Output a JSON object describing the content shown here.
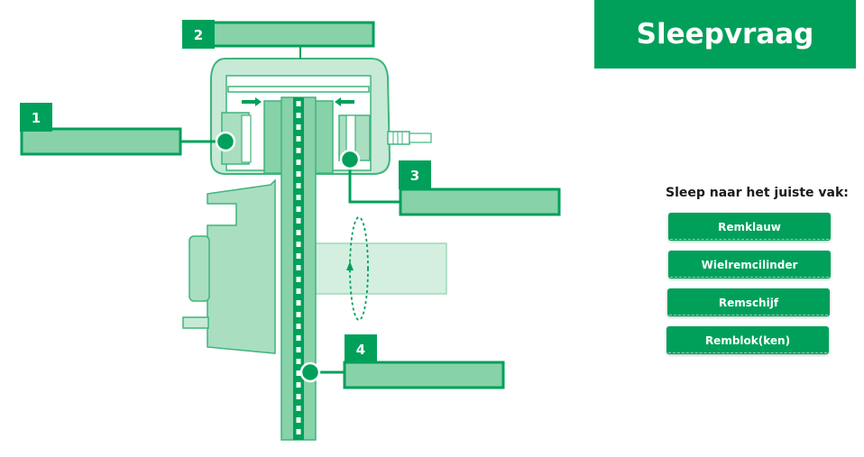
{
  "header": {
    "title": "Sleepvraag"
  },
  "instruction": "Sleep naar het juiste vak:",
  "drag_items": [
    {
      "label": "Remklauw"
    },
    {
      "label": "Wielremcilinder"
    },
    {
      "label": "Remschijf"
    },
    {
      "label": "Remblok(ken)"
    }
  ],
  "targets": [
    {
      "number": "1"
    },
    {
      "number": "2"
    },
    {
      "number": "3"
    },
    {
      "number": "4"
    }
  ],
  "colors": {
    "brand_green": "#00a05a",
    "light_green": "#87d2a8",
    "pale_green": "#c6ead6",
    "outline_green": "#00a05a"
  }
}
